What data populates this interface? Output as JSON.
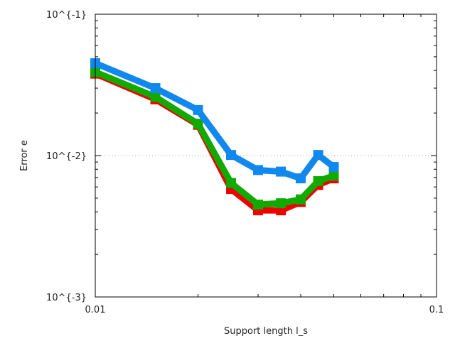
{
  "chart_data": {
    "type": "line",
    "title": "",
    "xlabel": "Support length l_s",
    "ylabel": "Error e",
    "x_scale": "log",
    "y_scale": "log",
    "xlim": [
      0.01,
      0.1
    ],
    "ylim": [
      0.001,
      0.1
    ],
    "x_tick_labels": [
      {
        "value": 0.01,
        "label": "0.01"
      },
      {
        "value": 0.1,
        "label": "0.1"
      }
    ],
    "y_tick_labels": [
      {
        "value": 0.1,
        "label": "10^{-1}"
      },
      {
        "value": 0.01,
        "label": "10^{-2}"
      },
      {
        "value": 0.001,
        "label": "10^{-3}"
      }
    ],
    "gridlines_y": [
      0.01
    ],
    "grid": "dotted horizontal at 10^{-2}",
    "legend": "none",
    "series": [
      {
        "color": "#ee0000",
        "x": [
          0.01,
          0.015,
          0.02,
          0.025,
          0.03,
          0.035,
          0.04,
          0.045,
          0.05
        ],
        "y": [
          0.038,
          0.025,
          0.0165,
          0.0058,
          0.0041,
          0.0041,
          0.0047,
          0.0062,
          0.0069
        ]
      },
      {
        "color": "#11aa00",
        "x": [
          0.01,
          0.015,
          0.02,
          0.025,
          0.03,
          0.035,
          0.04,
          0.045,
          0.05
        ],
        "y": [
          0.039,
          0.026,
          0.0168,
          0.0064,
          0.0045,
          0.0046,
          0.0049,
          0.0066,
          0.0072
        ]
      },
      {
        "color": "#1188ee",
        "x": [
          0.01,
          0.015,
          0.02,
          0.025,
          0.03,
          0.035,
          0.04,
          0.045,
          0.05
        ],
        "y": [
          0.045,
          0.03,
          0.021,
          0.0101,
          0.0079,
          0.0077,
          0.0069,
          0.0101,
          0.0083
        ]
      }
    ]
  }
}
